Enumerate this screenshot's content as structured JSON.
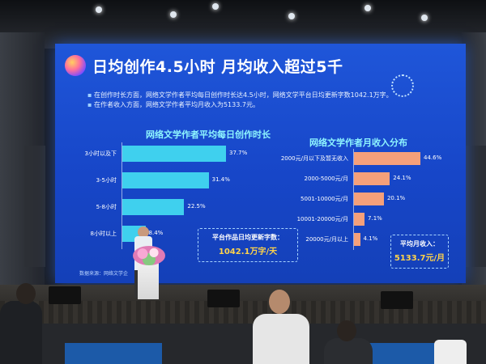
{
  "slide": {
    "title": "日均创作4.5小时  月均收入超过5千",
    "bullets": [
      "在创作时长方面，网络文学作者平均每日创作时长达4.5小时，网络文学平台日均更新字数1042.1万字。",
      "在作者收入方面，网络文学作者平均月收入为5133.7元。"
    ],
    "source": "数据来源：网络文学企",
    "callout_left": {
      "label": "平台作品日均更新字数：",
      "value": "1042.1万字/天"
    },
    "callout_right": {
      "label": "平均月收入：",
      "value": "5133.7元/月"
    }
  },
  "chart_data": [
    {
      "type": "bar",
      "orientation": "horizontal",
      "title": "网络文学作者平均每日创作时长",
      "categories": [
        "3小时以及下",
        "3-5小时",
        "5-8小时",
        "8小时以上"
      ],
      "values": [
        37.7,
        31.4,
        22.5,
        8.4
      ],
      "value_labels": [
        "37.7%",
        "31.4%",
        "22.5%",
        "8.4%"
      ],
      "unit": "%",
      "color": "#3fd0ee"
    },
    {
      "type": "bar",
      "orientation": "horizontal",
      "title": "网络文学作者月收入分布",
      "categories": [
        "2000元/月以下及暂无收入",
        "2000-5000元/月",
        "5001-10000元/月",
        "10001-20000元/月",
        "20000元/月以上"
      ],
      "values": [
        44.6,
        24.1,
        20.1,
        7.1,
        4.1
      ],
      "value_labels": [
        "44.6%",
        "24.1%",
        "20.1%",
        "7.1%",
        "4.1%"
      ],
      "unit": "%",
      "color": "#f5a07a"
    }
  ],
  "colors": {
    "screen": "#1a4fd0",
    "left_bars": "#3fd0ee",
    "right_bars": "#f5a07a",
    "chart_titles": "#8ef5ff",
    "callout_values": "#ffd34a"
  }
}
